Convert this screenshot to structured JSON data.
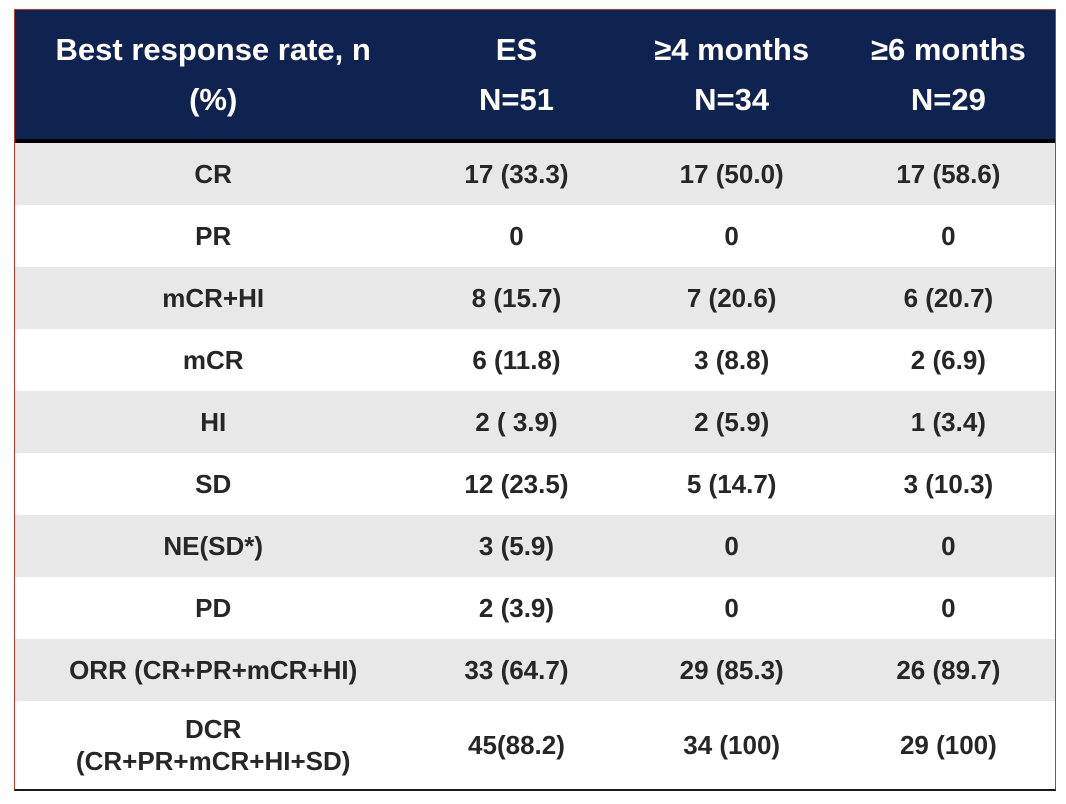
{
  "header": {
    "col0_line1": "Best response rate, n",
    "col0_line2": "(%)",
    "col1_line1": "ES",
    "col1_line2": "N=51",
    "col2_line1": "≥4 months",
    "col2_line2": "N=34",
    "col3_line1": "≥6 months",
    "col3_line2": "N=29"
  },
  "rows": [
    {
      "label": "CR",
      "es": "17 (33.3)",
      "m4": "17 (50.0)",
      "m6": "17 (58.6)"
    },
    {
      "label": "PR",
      "es": "0",
      "m4": "0",
      "m6": "0"
    },
    {
      "label": "mCR+HI",
      "es": "8 (15.7)",
      "m4": "7 (20.6)",
      "m6": "6 (20.7)"
    },
    {
      "label": "mCR",
      "es": "6 (11.8)",
      "m4": "3 (8.8)",
      "m6": "2 (6.9)"
    },
    {
      "label": "HI",
      "es": "2 ( 3.9)",
      "m4": "2 (5.9)",
      "m6": "1 (3.4)"
    },
    {
      "label": "SD",
      "es": "12 (23.5)",
      "m4": "5 (14.7)",
      "m6": "3 (10.3)"
    },
    {
      "label": "NE(SD*)",
      "es": "3 (5.9)",
      "m4": "0",
      "m6": "0"
    },
    {
      "label": "PD",
      "es": "2 (3.9)",
      "m4": "0",
      "m6": "0"
    },
    {
      "label": "ORR (CR+PR+mCR+HI)",
      "es": "33 (64.7)",
      "m4": "29 (85.3)",
      "m6": "26 (89.7)"
    },
    {
      "label_line1": "DCR",
      "label_line2": "(CR+PR+mCR+HI+SD)",
      "es": "45(88.2)",
      "m4": "34 (100)",
      "m6": "29 (100)"
    }
  ],
  "colors": {
    "header_bg": "#0f2350",
    "stripe_bg": "#e8e8e8",
    "frame_border": "#c0392b"
  }
}
